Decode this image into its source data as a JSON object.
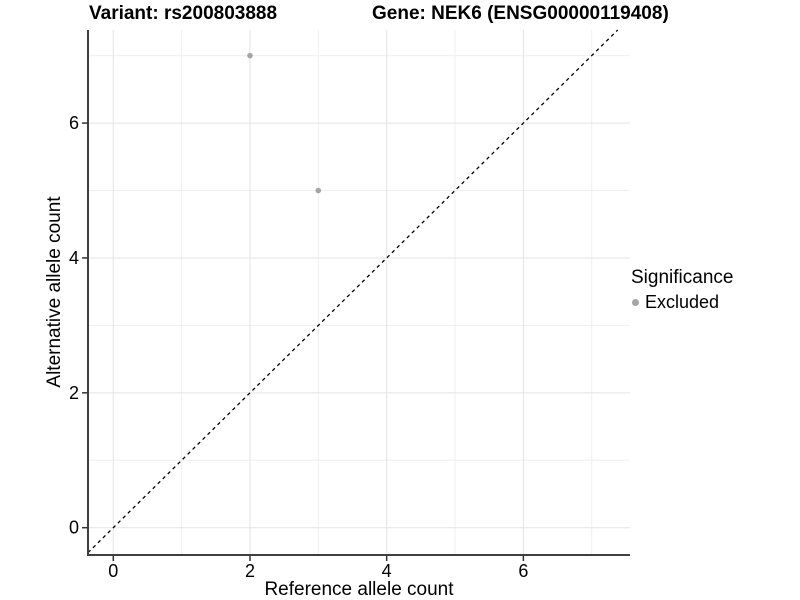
{
  "chart_data": {
    "type": "scatter",
    "title_left": "Variant: rs200803888",
    "title_right": "Gene: NEK6 (ENSG00000119408)",
    "xlabel": "Reference allele count",
    "ylabel": "Alternative allele count",
    "x_ticks": [
      0,
      2,
      4,
      6
    ],
    "y_ticks": [
      0,
      2,
      4,
      6
    ],
    "x_minor_ticks": [
      1,
      3,
      5,
      7
    ],
    "y_minor_ticks": [
      1,
      3,
      5,
      7
    ],
    "xlim": [
      -0.37,
      7.56
    ],
    "ylim": [
      -0.39,
      7.38
    ],
    "grid": "major+minor",
    "series": [
      {
        "name": "Excluded",
        "color": "#a5a5a5",
        "points": [
          {
            "x": 2,
            "y": 7
          },
          {
            "x": 3,
            "y": 5
          }
        ]
      }
    ],
    "reference_line": {
      "slope": 1,
      "intercept": 0,
      "style": "dashed",
      "color": "#000000"
    },
    "legend": {
      "title": "Significance",
      "position": "right",
      "entries": [
        {
          "label": "Excluded",
          "color": "#a5a5a5"
        }
      ]
    },
    "colors": {
      "background": "#ffffff",
      "grid_major": "#e3e3e3",
      "grid_minor": "#efefef",
      "axis_line": "#3f3f3f",
      "tick": "#333333",
      "text": "#000000"
    }
  }
}
